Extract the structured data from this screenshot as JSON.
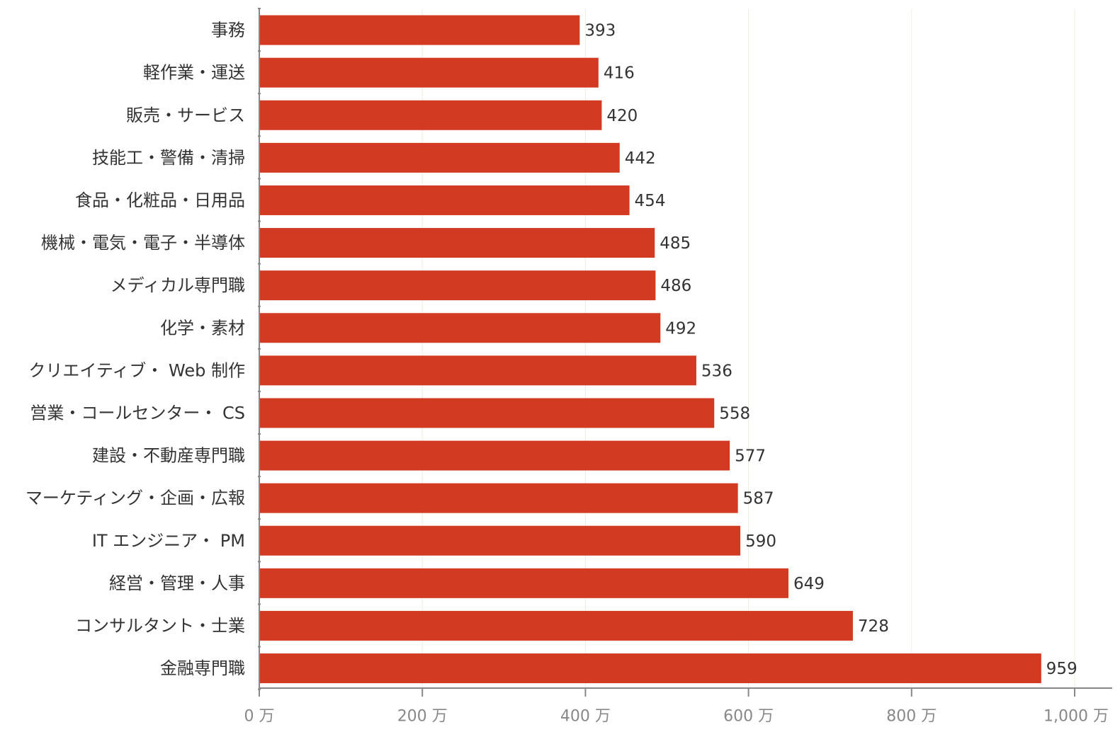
{
  "chart_data": {
    "type": "bar",
    "orientation": "horizontal",
    "categories": [
      "事務",
      "軽作業・運送",
      "販売・サービス",
      "技能工・警備・清掃",
      "食品・化粧品・日用品",
      "機械・電気・電子・半導体",
      "メディカル専門職",
      "化学・素材",
      "クリエイティブ・ Web 制作",
      "営業・コールセンター・ CS",
      "建設・不動産専門職",
      "マーケティング・企画・広報",
      "IT エンジニア・ PM",
      "経営・管理・人事",
      "コンサルタント・士業",
      "金融専門職"
    ],
    "values": [
      393,
      416,
      420,
      442,
      454,
      485,
      486,
      492,
      536,
      558,
      577,
      587,
      590,
      649,
      728,
      959
    ],
    "xlim": [
      0,
      1000
    ],
    "xticks": [
      0,
      200,
      400,
      600,
      800,
      1000
    ],
    "xtick_labels": [
      "0 万",
      "200 万",
      "400 万",
      "600 万",
      "800 万",
      "1,000 万"
    ],
    "title": "",
    "xlabel": "",
    "ylabel": "",
    "grid": "vertical",
    "legend": "none",
    "colors": {
      "bar": "#d23a22",
      "grid": "#ecefe0",
      "axis": "#888888",
      "label": "#333333",
      "tick": "#888888"
    }
  }
}
